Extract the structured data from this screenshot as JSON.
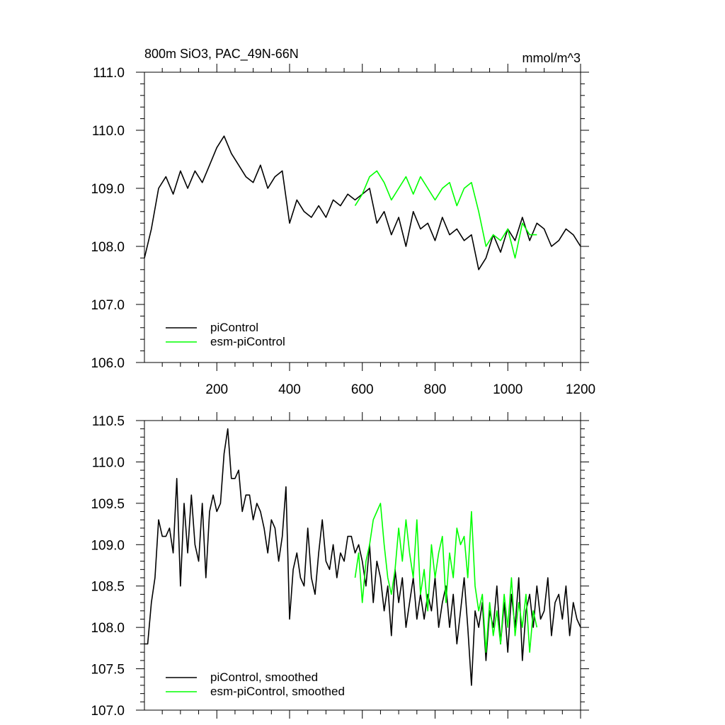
{
  "chart_data": [
    {
      "type": "line",
      "title": "800m SiO3, PAC_49N-66N",
      "units": "mmol/m^3",
      "xlim": [
        1,
        1200
      ],
      "ylim": [
        106.0,
        111.0
      ],
      "x_ticks": [
        200,
        400,
        600,
        800,
        1000,
        1200
      ],
      "y_ticks": [
        "106.0",
        "107.0",
        "108.0",
        "109.0",
        "110.0",
        "111.0"
      ],
      "legend_position": "bottom-left",
      "series": [
        {
          "name": "piControl",
          "color": "#000000",
          "x": [
            1,
            20,
            40,
            60,
            80,
            100,
            120,
            140,
            160,
            180,
            200,
            220,
            240,
            260,
            280,
            300,
            320,
            340,
            360,
            380,
            400,
            420,
            440,
            460,
            480,
            500,
            520,
            540,
            560,
            580,
            600,
            620,
            640,
            660,
            680,
            700,
            720,
            740,
            760,
            780,
            800,
            820,
            840,
            860,
            880,
            900,
            920,
            940,
            960,
            980,
            1000,
            1020,
            1040,
            1060,
            1080,
            1100,
            1120,
            1140,
            1160,
            1180,
            1200
          ],
          "values": [
            107.8,
            108.3,
            109.0,
            109.2,
            108.9,
            109.3,
            109.0,
            109.3,
            109.1,
            109.4,
            109.7,
            109.9,
            109.6,
            109.4,
            109.2,
            109.1,
            109.4,
            109.0,
            109.2,
            109.3,
            108.4,
            108.8,
            108.6,
            108.5,
            108.7,
            108.5,
            108.8,
            108.7,
            108.9,
            108.8,
            108.9,
            109.0,
            108.4,
            108.6,
            108.2,
            108.5,
            108.0,
            108.6,
            108.3,
            108.4,
            108.1,
            108.5,
            108.2,
            108.3,
            108.1,
            108.2,
            107.6,
            107.8,
            108.2,
            107.9,
            108.3,
            108.1,
            108.5,
            108.1,
            108.4,
            108.3,
            108.0,
            108.1,
            108.3,
            108.2,
            108.0
          ]
        },
        {
          "name": "esm-piControl",
          "color": "#00ff00",
          "x": [
            580,
            600,
            620,
            640,
            660,
            680,
            700,
            720,
            740,
            760,
            780,
            800,
            820,
            840,
            860,
            880,
            900,
            920,
            940,
            960,
            980,
            1000,
            1020,
            1040,
            1060,
            1080
          ],
          "values": [
            108.7,
            108.9,
            109.2,
            109.3,
            109.1,
            108.8,
            109.0,
            109.2,
            108.9,
            109.2,
            109.0,
            108.8,
            109.0,
            109.1,
            108.7,
            109.0,
            109.1,
            108.6,
            108.0,
            108.2,
            108.1,
            108.3,
            107.8,
            108.4,
            108.2,
            108.2
          ]
        }
      ]
    },
    {
      "type": "line",
      "title": "",
      "xlim": [
        1,
        1200
      ],
      "ylim": [
        107.0,
        110.5
      ],
      "y_ticks": [
        "107.0",
        "107.5",
        "108.0",
        "108.5",
        "109.0",
        "109.5",
        "110.0",
        "110.5"
      ],
      "legend_position": "bottom-left",
      "series": [
        {
          "name": "piControl, smoothed",
          "color": "#000000",
          "x": [
            1,
            10,
            20,
            30,
            40,
            50,
            60,
            70,
            80,
            90,
            100,
            110,
            120,
            130,
            140,
            150,
            160,
            170,
            180,
            190,
            200,
            210,
            220,
            230,
            240,
            250,
            260,
            270,
            280,
            290,
            300,
            310,
            320,
            330,
            340,
            350,
            360,
            370,
            380,
            390,
            400,
            410,
            420,
            430,
            440,
            450,
            460,
            470,
            480,
            490,
            500,
            510,
            520,
            530,
            540,
            550,
            560,
            570,
            580,
            590,
            600,
            610,
            620,
            630,
            640,
            650,
            660,
            670,
            680,
            690,
            700,
            710,
            720,
            730,
            740,
            750,
            760,
            770,
            780,
            790,
            800,
            810,
            820,
            830,
            840,
            850,
            860,
            870,
            880,
            890,
            900,
            910,
            920,
            930,
            940,
            950,
            960,
            970,
            980,
            990,
            1000,
            1010,
            1020,
            1030,
            1040,
            1050,
            1060,
            1070,
            1080,
            1090,
            1100,
            1110,
            1120,
            1130,
            1140,
            1150,
            1160,
            1170,
            1180,
            1190,
            1200
          ],
          "values": [
            107.8,
            107.8,
            108.3,
            108.6,
            109.3,
            109.1,
            109.1,
            109.2,
            108.9,
            109.8,
            108.5,
            109.5,
            108.9,
            109.6,
            109.0,
            108.8,
            109.5,
            108.6,
            109.4,
            109.6,
            109.4,
            109.5,
            110.1,
            110.4,
            109.8,
            109.8,
            109.9,
            109.4,
            109.6,
            109.6,
            109.3,
            109.5,
            109.4,
            109.2,
            108.9,
            109.3,
            109.2,
            108.8,
            109.1,
            109.7,
            108.1,
            108.7,
            108.9,
            108.6,
            108.5,
            109.2,
            108.6,
            108.4,
            108.9,
            109.3,
            108.8,
            108.7,
            109.0,
            108.6,
            108.9,
            108.8,
            109.1,
            109.1,
            108.9,
            109.0,
            108.8,
            108.5,
            109.0,
            108.3,
            108.8,
            108.6,
            108.2,
            108.5,
            107.9,
            108.7,
            108.3,
            108.6,
            108.0,
            108.3,
            108.6,
            108.1,
            108.4,
            108.1,
            108.4,
            108.2,
            108.6,
            108.0,
            108.3,
            108.5,
            108.0,
            108.4,
            107.8,
            108.2,
            108.6,
            108.0,
            107.3,
            108.2,
            108.0,
            108.3,
            107.6,
            108.2,
            108.0,
            108.5,
            107.8,
            108.3,
            107.7,
            108.4,
            108.0,
            108.6,
            107.6,
            108.2,
            108.4,
            108.0,
            108.5,
            108.1,
            108.2,
            108.6,
            107.9,
            108.3,
            108.4,
            108.1,
            108.5,
            107.9,
            108.3,
            108.1,
            108.0
          ]
        },
        {
          "name": "esm-piControl, smoothed",
          "color": "#00ff00",
          "x": [
            580,
            590,
            600,
            610,
            620,
            630,
            640,
            650,
            660,
            670,
            680,
            690,
            700,
            710,
            720,
            730,
            740,
            750,
            760,
            770,
            780,
            790,
            800,
            810,
            820,
            830,
            840,
            850,
            860,
            870,
            880,
            890,
            900,
            910,
            920,
            930,
            940,
            950,
            960,
            970,
            980,
            990,
            1000,
            1010,
            1020,
            1030,
            1040,
            1050,
            1060,
            1070,
            1080
          ],
          "values": [
            108.6,
            108.9,
            108.3,
            108.8,
            109.0,
            109.3,
            109.4,
            109.5,
            109.0,
            108.6,
            108.4,
            108.7,
            109.2,
            108.8,
            109.3,
            108.9,
            108.6,
            109.3,
            108.4,
            108.7,
            108.2,
            109.0,
            108.6,
            108.9,
            109.1,
            108.3,
            108.9,
            108.6,
            109.2,
            109.0,
            109.1,
            108.6,
            109.4,
            108.5,
            108.2,
            108.4,
            107.7,
            108.3,
            107.9,
            108.2,
            107.8,
            108.4,
            108.0,
            108.6,
            107.9,
            108.3,
            108.0,
            108.4,
            107.7,
            108.2,
            108.0
          ]
        }
      ]
    }
  ]
}
